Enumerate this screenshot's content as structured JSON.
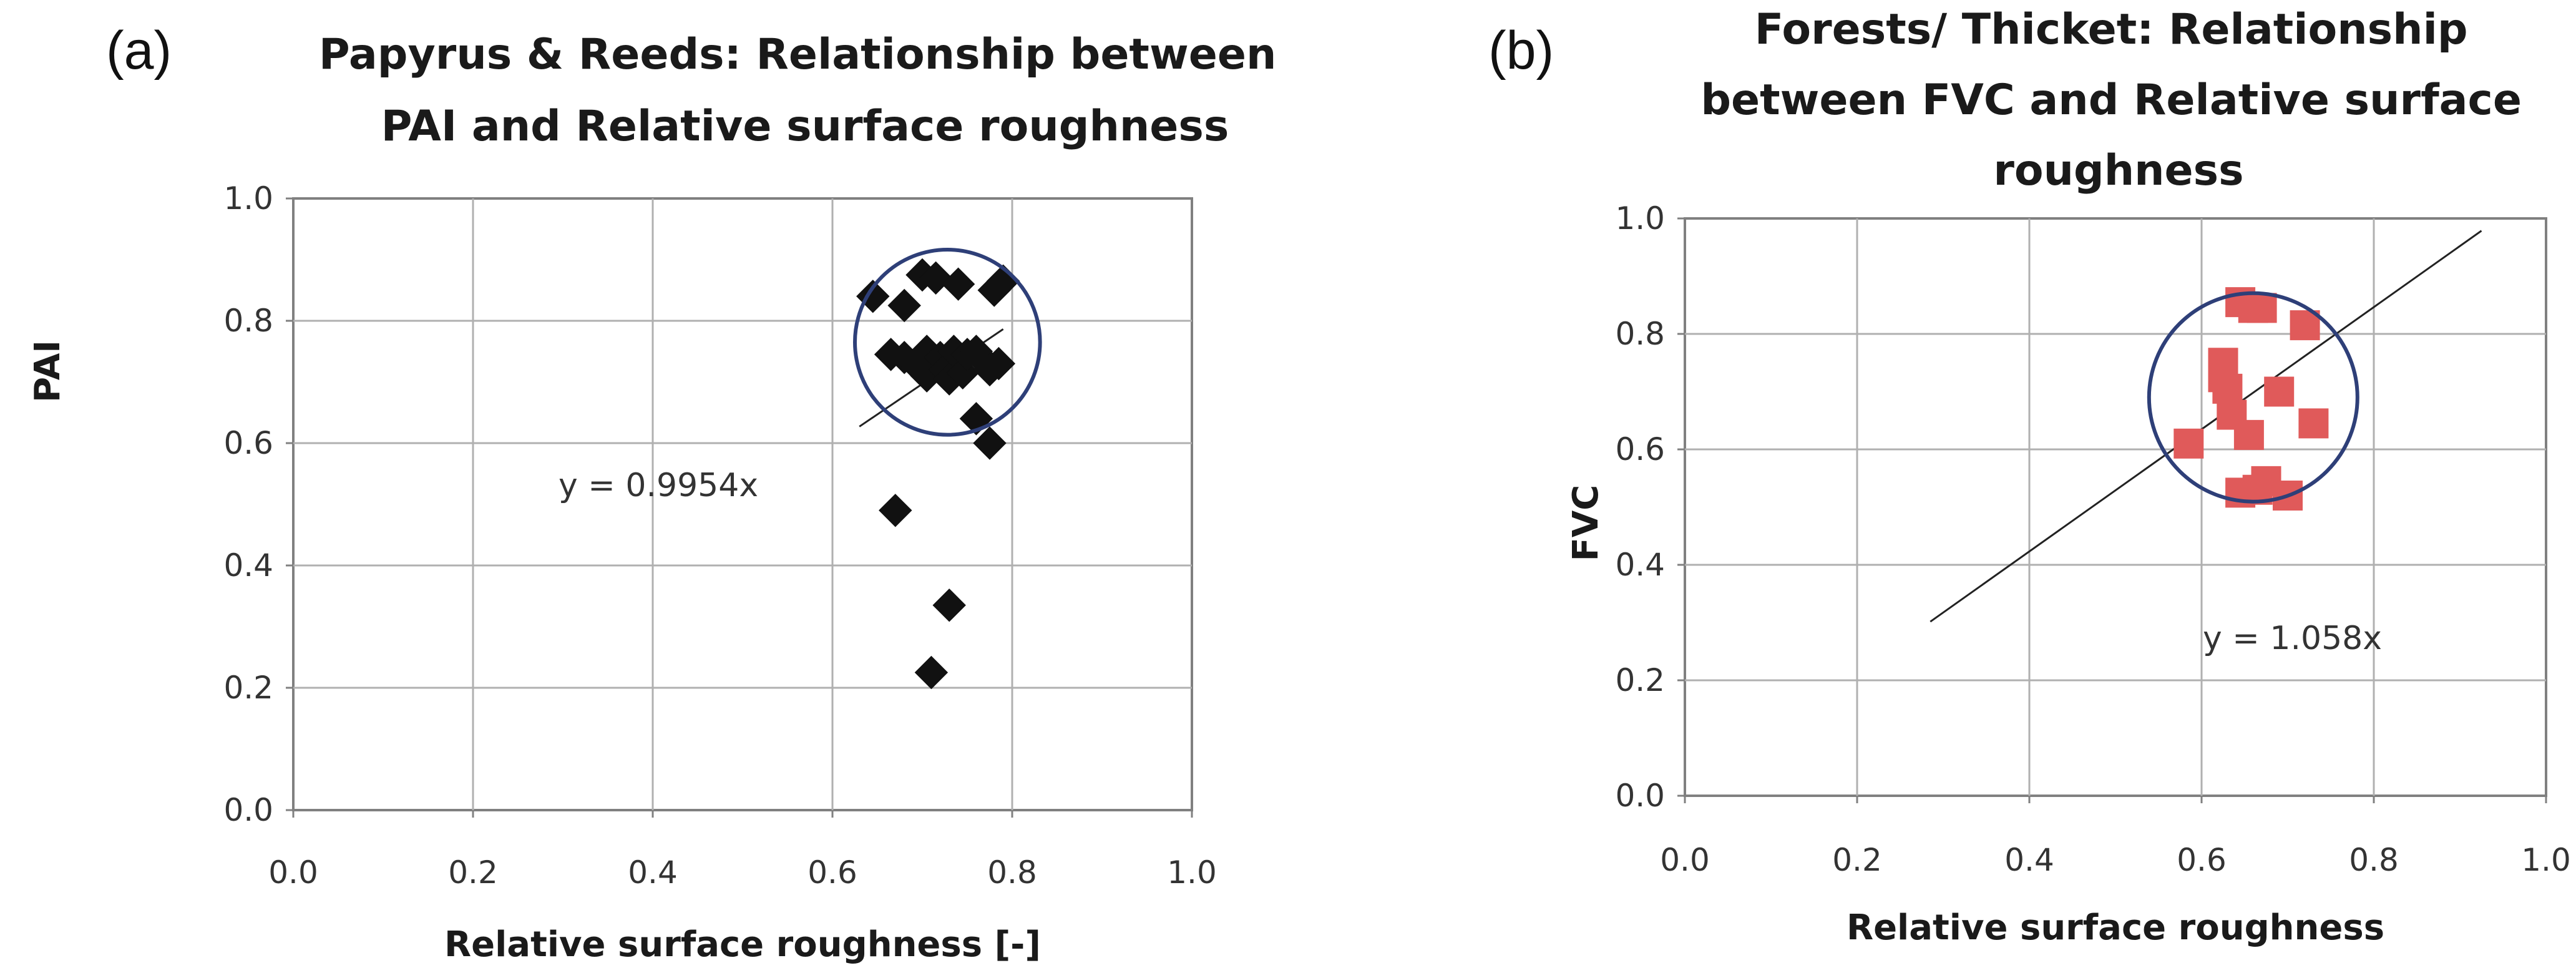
{
  "chart_data": [
    {
      "panel": "(a)",
      "type": "scatter",
      "title": [
        "Papyrus & Reeds: Relationship between",
        "PAI and Relative surface roughness"
      ],
      "xlabel": "Relative surface roughness  [-]",
      "ylabel": "PAI",
      "xlim": [
        0,
        1
      ],
      "ylim": [
        0,
        1
      ],
      "xticks": [
        "0.0",
        "0.2",
        "0.4",
        "0.6",
        "0.8",
        "1.0"
      ],
      "yticks": [
        "0.0",
        "0.2",
        "0.4",
        "0.6",
        "0.8",
        "1.0"
      ],
      "grid": true,
      "marker": "diamond",
      "color": "#111111",
      "points": [
        [
          0.645,
          0.84
        ],
        [
          0.665,
          0.745
        ],
        [
          0.68,
          0.825
        ],
        [
          0.68,
          0.74
        ],
        [
          0.695,
          0.725
        ],
        [
          0.7,
          0.875
        ],
        [
          0.705,
          0.75
        ],
        [
          0.705,
          0.71
        ],
        [
          0.715,
          0.87
        ],
        [
          0.72,
          0.74
        ],
        [
          0.725,
          0.72
        ],
        [
          0.73,
          0.705
        ],
        [
          0.735,
          0.75
        ],
        [
          0.74,
          0.86
        ],
        [
          0.745,
          0.715
        ],
        [
          0.75,
          0.745
        ],
        [
          0.76,
          0.75
        ],
        [
          0.765,
          0.74
        ],
        [
          0.775,
          0.72
        ],
        [
          0.78,
          0.85
        ],
        [
          0.785,
          0.73
        ],
        [
          0.79,
          0.865
        ],
        [
          0.76,
          0.64
        ],
        [
          0.775,
          0.6
        ],
        [
          0.67,
          0.49
        ],
        [
          0.73,
          0.335
        ],
        [
          0.71,
          0.225
        ]
      ],
      "trendline": {
        "label": "y = 0.9954x",
        "slope": 0.9954,
        "x_range": [
          0.63,
          0.79
        ]
      },
      "circle": {
        "cx": 0.728,
        "cy": 0.765,
        "r": 0.103
      }
    },
    {
      "panel": "(b)",
      "type": "scatter",
      "title": [
        "Forests/ Thicket: Relationship",
        "between FVC and Relative surface",
        "roughness"
      ],
      "xlabel": "Relative surface roughness",
      "ylabel": "FVC",
      "xlim": [
        0,
        1
      ],
      "ylim": [
        0,
        1
      ],
      "xticks": [
        "0.0",
        "0.2",
        "0.4",
        "0.6",
        "0.8",
        "1.0"
      ],
      "yticks": [
        "0.0",
        "0.2",
        "0.4",
        "0.6",
        "0.8",
        "1.0"
      ],
      "grid": true,
      "marker": "square",
      "color": "#e05a5a",
      "points": [
        [
          0.585,
          0.61
        ],
        [
          0.625,
          0.75
        ],
        [
          0.625,
          0.725
        ],
        [
          0.63,
          0.705
        ],
        [
          0.635,
          0.66
        ],
        [
          0.645,
          0.855
        ],
        [
          0.645,
          0.525
        ],
        [
          0.655,
          0.625
        ],
        [
          0.66,
          0.845
        ],
        [
          0.665,
          0.53
        ],
        [
          0.67,
          0.845
        ],
        [
          0.675,
          0.545
        ],
        [
          0.69,
          0.7
        ],
        [
          0.7,
          0.52
        ],
        [
          0.72,
          0.815
        ],
        [
          0.73,
          0.645
        ]
      ],
      "trendline": {
        "label": "y = 1.058x",
        "slope": 1.058,
        "x_range": [
          0.285,
          0.925
        ]
      },
      "circle": {
        "cx": 0.66,
        "cy": 0.69,
        "r": 0.121
      }
    }
  ]
}
